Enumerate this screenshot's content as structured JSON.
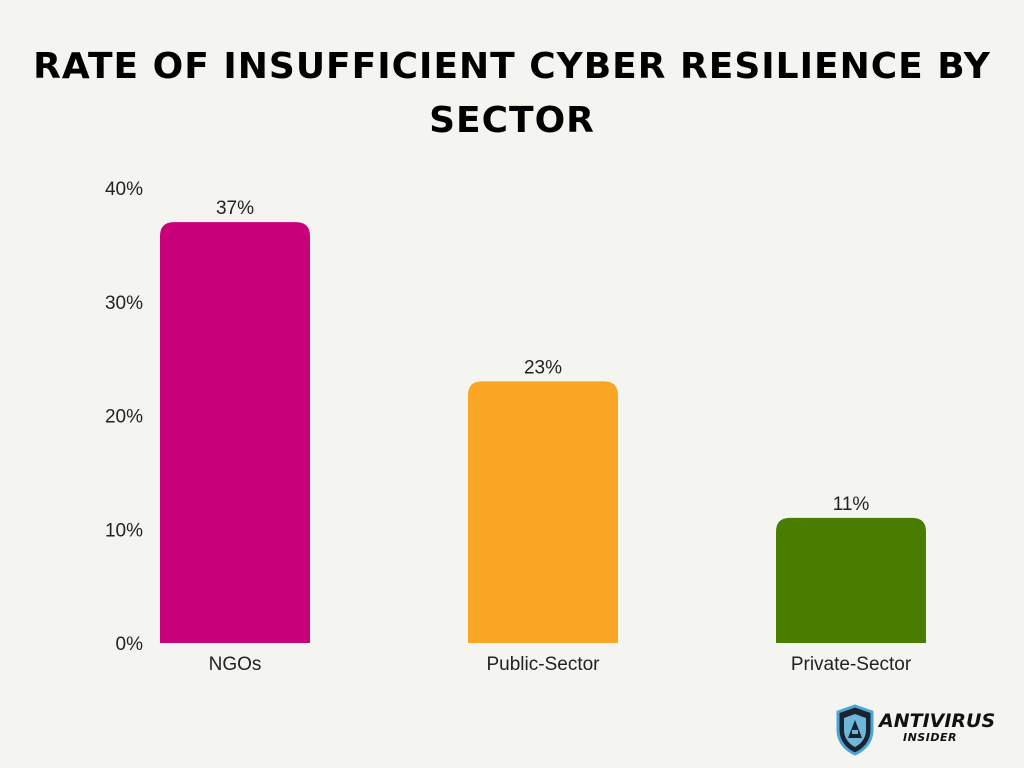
{
  "chart_data": {
    "type": "bar",
    "title": "RATE OF INSUFFICIENT CYBER RESILIENCE BY SECTOR",
    "categories": [
      "NGOs",
      "Public-Sector",
      "Private-Sector"
    ],
    "values": [
      37,
      23,
      11
    ],
    "data_labels": [
      "37%",
      "23%",
      "11%"
    ],
    "colors": [
      "#c8007a",
      "#fba524",
      "#4a7c00"
    ],
    "yticks": [
      0,
      10,
      20,
      30,
      40
    ],
    "ytick_labels": [
      "0%",
      "10%",
      "20%",
      "30%",
      "40%"
    ],
    "ylim": [
      0,
      40
    ],
    "grid": false,
    "legend": "none"
  },
  "logo": {
    "line1": "ANTIVIRUS",
    "line2": "INSIDER",
    "icon": "shield-icon"
  }
}
